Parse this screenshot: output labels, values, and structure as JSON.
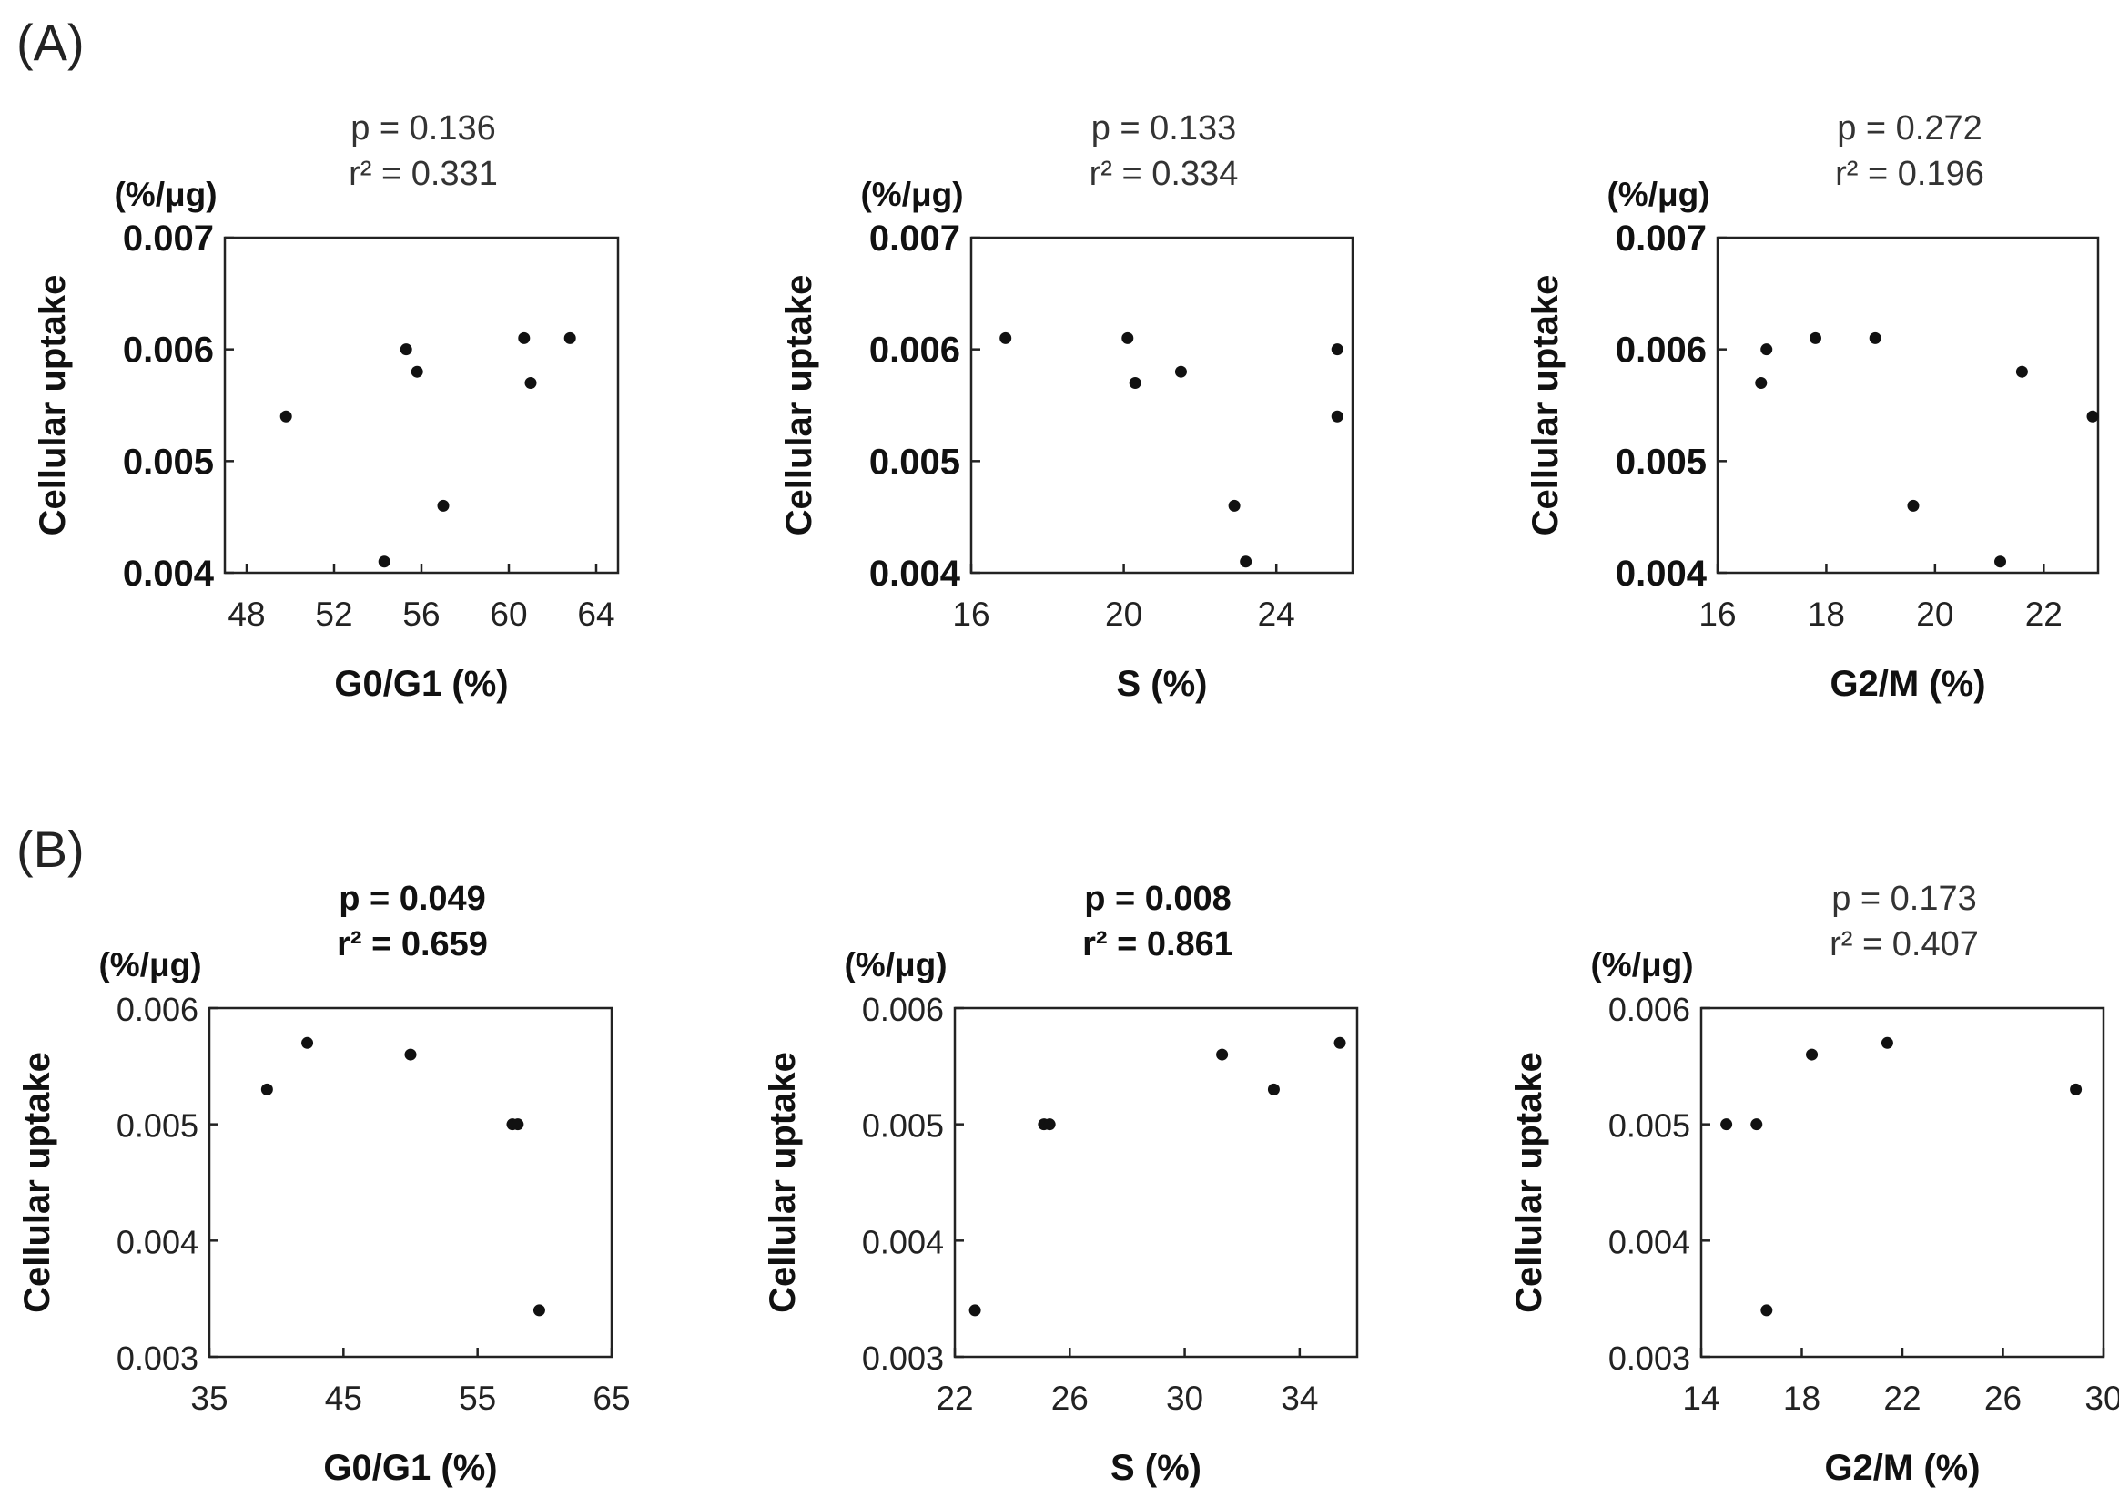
{
  "panels": [
    {
      "label": "(A)"
    },
    {
      "label": "(B)"
    }
  ],
  "chart_data": [
    {
      "type": "scatter",
      "panel": "(A)",
      "stats": {
        "p": "p = 0.136",
        "r2": "r² = 0.331",
        "bold": false
      },
      "unit_label": "(%/μg)",
      "xlabel": "G0/G1 (%)",
      "ylabel": "Cellular uptake",
      "xlim": [
        47,
        65
      ],
      "ylim": [
        0.004,
        0.007
      ],
      "xticks": [
        48,
        52,
        56,
        60,
        64
      ],
      "xtick_labels": [
        "48",
        "52",
        "56",
        "60",
        "64"
      ],
      "yticks": [
        0.004,
        0.005,
        0.006,
        0.007
      ],
      "ytick_labels": [
        "0.004",
        "0.005",
        "0.006",
        "0.007"
      ],
      "x": [
        49.8,
        54.3,
        55.3,
        55.8,
        57.0,
        60.7,
        61.0,
        62.8
      ],
      "y": [
        0.0054,
        0.0041,
        0.006,
        0.0058,
        0.0046,
        0.0061,
        0.0057,
        0.0061
      ]
    },
    {
      "type": "scatter",
      "panel": "(A)",
      "stats": {
        "p": "p = 0.133",
        "r2": "r² = 0.334",
        "bold": false
      },
      "unit_label": "(%/μg)",
      "xlabel": "S (%)",
      "ylabel": "Cellular uptake",
      "xlim": [
        16,
        26
      ],
      "ylim": [
        0.004,
        0.007
      ],
      "xticks": [
        16,
        20,
        24
      ],
      "xtick_labels": [
        "16",
        "20",
        "24"
      ],
      "yticks": [
        0.004,
        0.005,
        0.006,
        0.007
      ],
      "ytick_labels": [
        "0.004",
        "0.005",
        "0.006",
        "0.007"
      ],
      "x": [
        16.9,
        20.1,
        20.3,
        21.5,
        22.9,
        23.2,
        25.6,
        25.6
      ],
      "y": [
        0.0061,
        0.0061,
        0.0057,
        0.0058,
        0.0046,
        0.0041,
        0.006,
        0.0054
      ]
    },
    {
      "type": "scatter",
      "panel": "(A)",
      "stats": {
        "p": "p = 0.272",
        "r2": "r² = 0.196",
        "bold": false
      },
      "unit_label": "(%/μg)",
      "xlabel": "G2/M (%)",
      "ylabel": "Cellular uptake",
      "xlim": [
        16,
        23
      ],
      "ylim": [
        0.004,
        0.007
      ],
      "xticks": [
        16,
        18,
        20,
        22
      ],
      "xtick_labels": [
        "16",
        "18",
        "20",
        "22"
      ],
      "yticks": [
        0.004,
        0.005,
        0.006,
        0.007
      ],
      "ytick_labels": [
        "0.004",
        "0.005",
        "0.006",
        "0.007"
      ],
      "x": [
        16.8,
        16.9,
        17.8,
        18.9,
        19.6,
        21.2,
        21.6,
        22.9
      ],
      "y": [
        0.0057,
        0.006,
        0.0061,
        0.0061,
        0.0046,
        0.0041,
        0.0058,
        0.0054
      ]
    },
    {
      "type": "scatter",
      "panel": "(B)",
      "stats": {
        "p": "p = 0.049",
        "r2": "r² = 0.659",
        "bold": true
      },
      "unit_label": "(%/μg)",
      "xlabel": "G0/G1 (%)",
      "ylabel": "Cellular uptake",
      "xlim": [
        35,
        65
      ],
      "ylim": [
        0.003,
        0.006
      ],
      "xticks": [
        35,
        45,
        55,
        65
      ],
      "xtick_labels": [
        "35",
        "45",
        "55",
        "65"
      ],
      "yticks": [
        0.003,
        0.004,
        0.005,
        0.006
      ],
      "ytick_labels": [
        "0.003",
        "0.004",
        "0.005",
        "0.006"
      ],
      "x": [
        39.3,
        42.3,
        50.0,
        57.6,
        58.0,
        59.6
      ],
      "y": [
        0.0053,
        0.0057,
        0.0056,
        0.005,
        0.005,
        0.0034
      ]
    },
    {
      "type": "scatter",
      "panel": "(B)",
      "stats": {
        "p": "p = 0.008",
        "r2": "r² = 0.861",
        "bold": true
      },
      "unit_label": "(%/μg)",
      "xlabel": "S (%)",
      "ylabel": "Cellular uptake",
      "xlim": [
        22,
        36
      ],
      "ylim": [
        0.003,
        0.006
      ],
      "xticks": [
        22,
        26,
        30,
        34
      ],
      "xtick_labels": [
        "22",
        "26",
        "30",
        "34"
      ],
      "yticks": [
        0.003,
        0.004,
        0.005,
        0.006
      ],
      "ytick_labels": [
        "0.003",
        "0.004",
        "0.005",
        "0.006"
      ],
      "x": [
        22.7,
        25.1,
        25.3,
        31.3,
        33.1,
        35.4
      ],
      "y": [
        0.0034,
        0.005,
        0.005,
        0.0056,
        0.0053,
        0.0057
      ]
    },
    {
      "type": "scatter",
      "panel": "(B)",
      "stats": {
        "p": "p = 0.173",
        "r2": "r² = 0.407",
        "bold": false
      },
      "unit_label": "(%/μg)",
      "xlabel": "G2/M (%)",
      "ylabel": "Cellular uptake",
      "xlim": [
        14,
        30
      ],
      "ylim": [
        0.003,
        0.006
      ],
      "xticks": [
        14,
        18,
        22,
        26,
        30
      ],
      "xtick_labels": [
        "14",
        "18",
        "22",
        "26",
        "30"
      ],
      "yticks": [
        0.003,
        0.004,
        0.005,
        0.006
      ],
      "ytick_labels": [
        "0.003",
        "0.004",
        "0.005",
        "0.006"
      ],
      "x": [
        15.0,
        16.2,
        16.6,
        18.4,
        21.4,
        28.9
      ],
      "y": [
        0.005,
        0.005,
        0.0034,
        0.0056,
        0.0057,
        0.0053
      ]
    }
  ]
}
